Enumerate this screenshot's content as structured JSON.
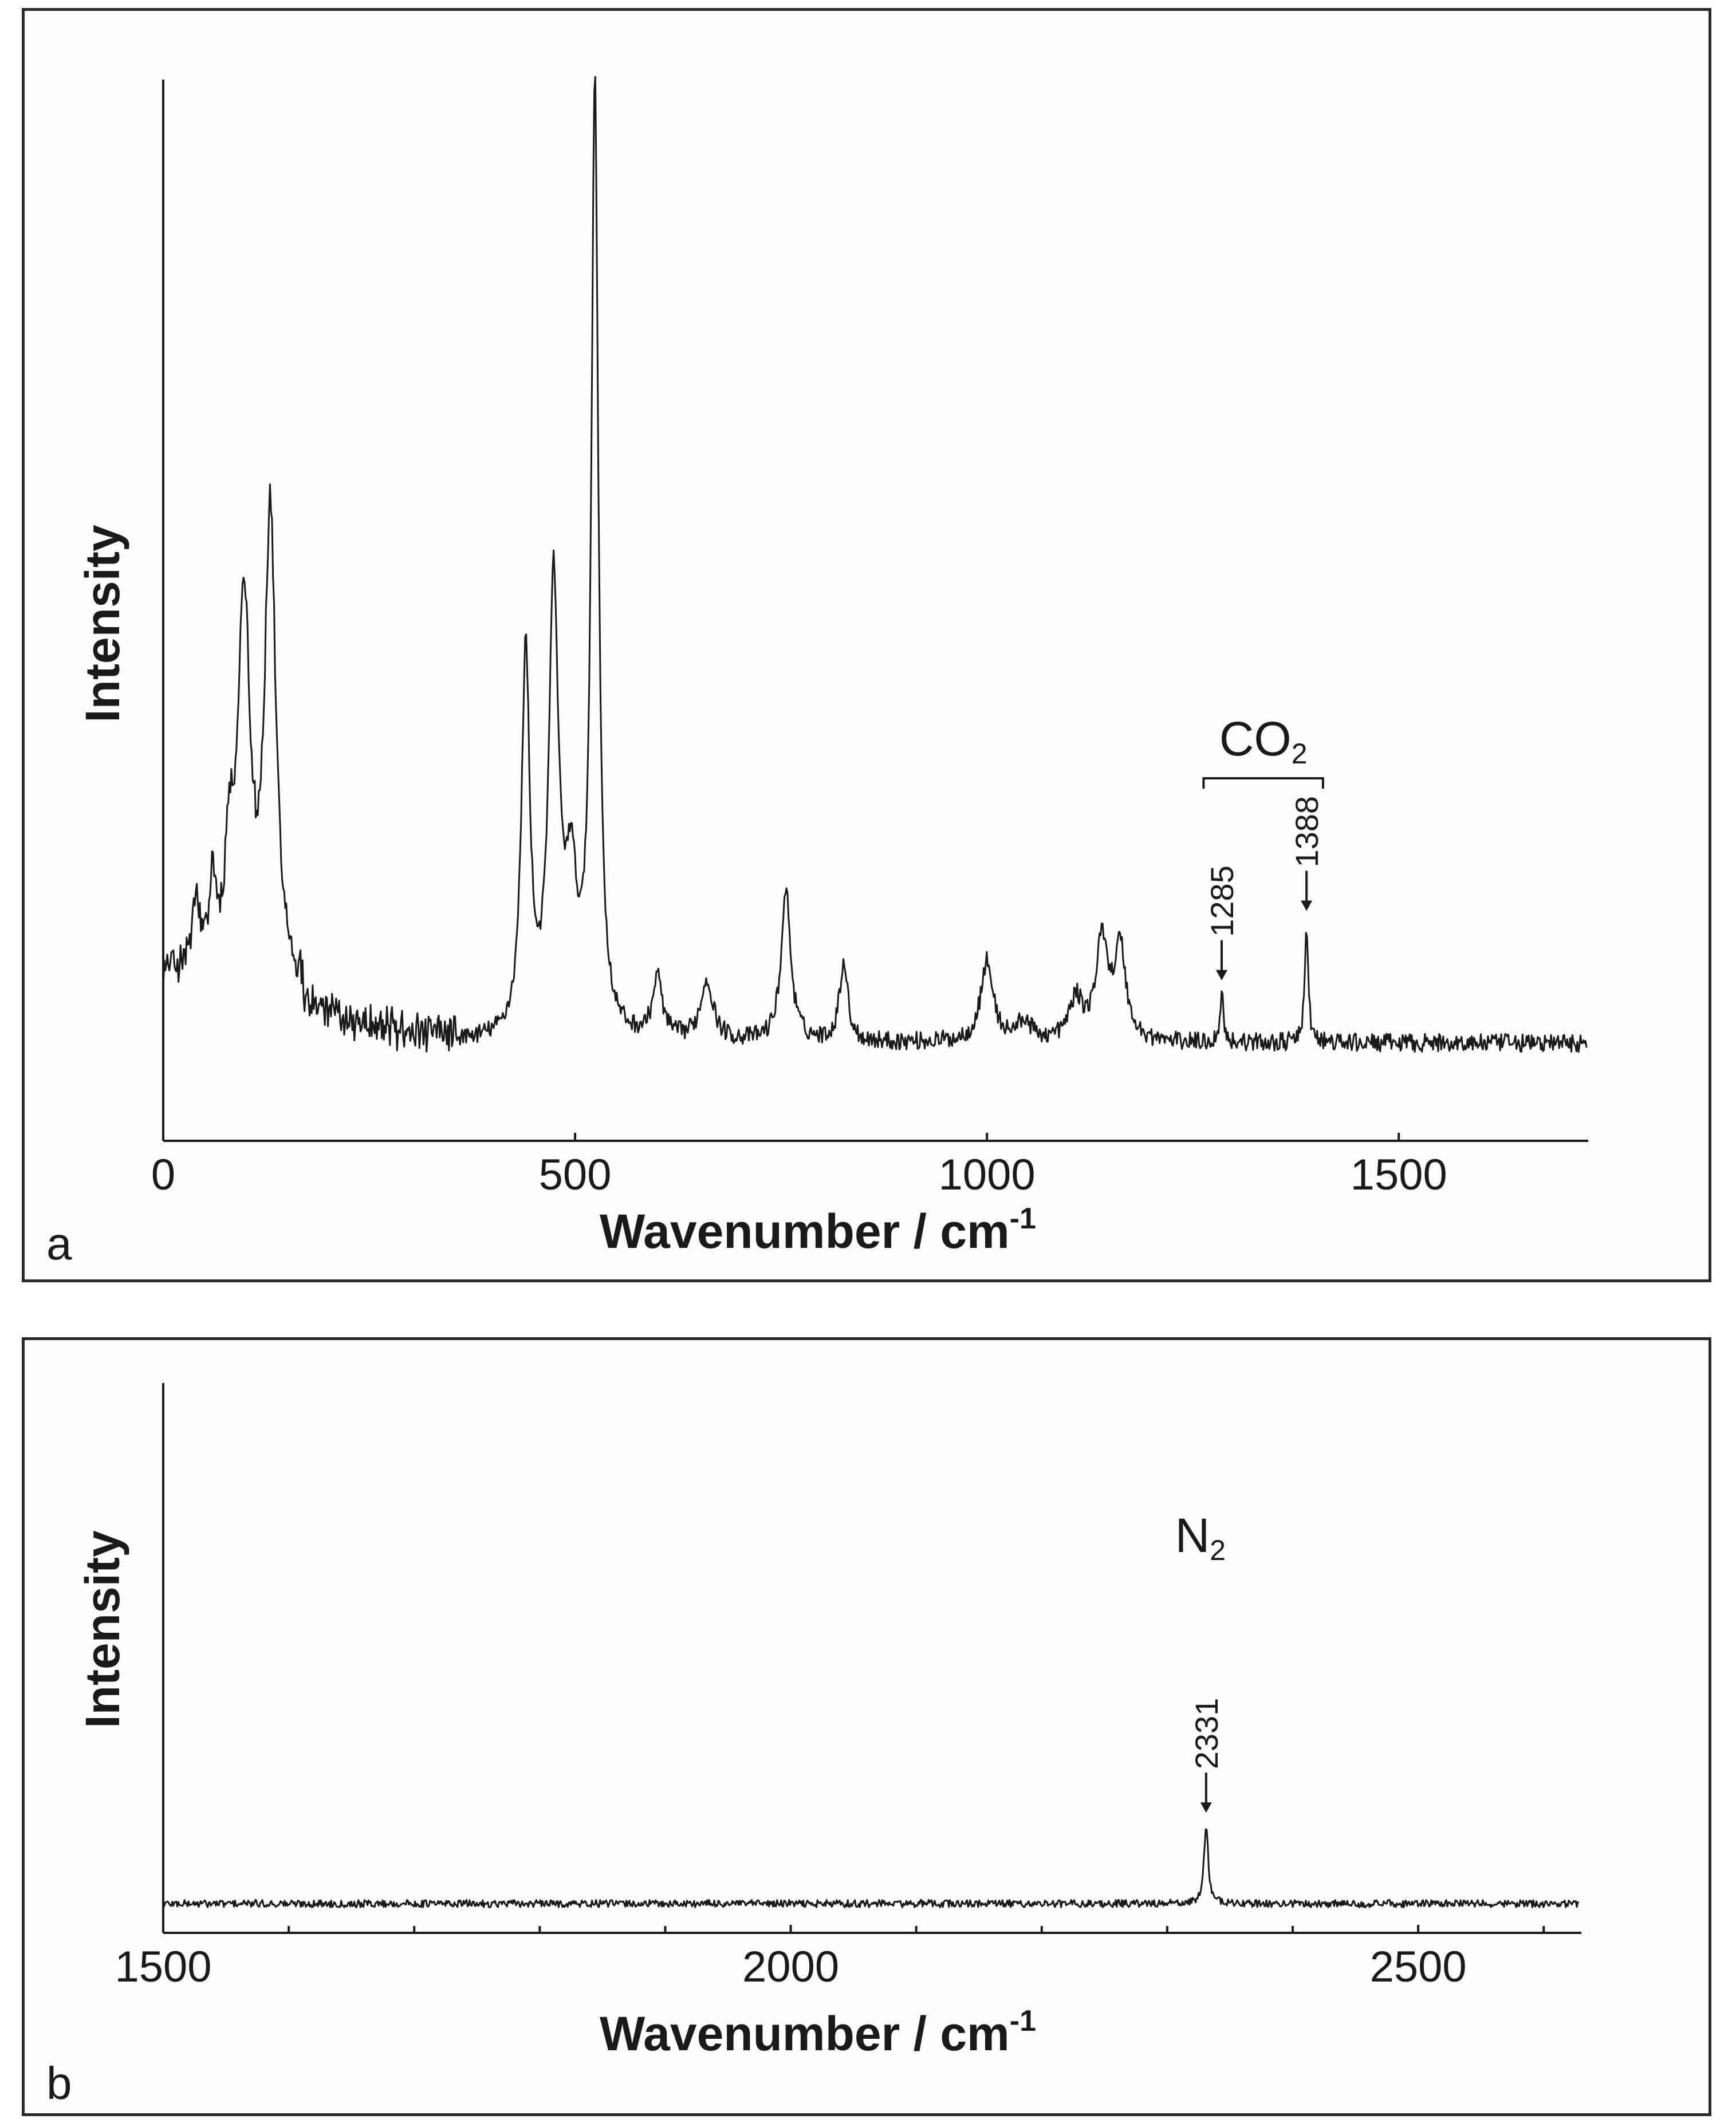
{
  "chart_data": [
    {
      "type": "line",
      "panel": "a",
      "xlabel": "Wavenumber / cm",
      "xlabel_sup": "-1",
      "ylabel": "Intensity",
      "xlim": [
        0,
        1730
      ],
      "ylim": [
        0,
        100
      ],
      "xticks": [
        0,
        500,
        1000,
        1500
      ],
      "xtick_labels": [
        "0",
        "500",
        "1000",
        "1500"
      ],
      "baseline": 5,
      "noise": 0.9,
      "peaks": [
        {
          "x": 98,
          "h": 38,
          "w": 9
        },
        {
          "x": 130,
          "h": 46,
          "w": 8
        },
        {
          "x": 80,
          "h": 10,
          "w": 6
        },
        {
          "x": 40,
          "h": 7,
          "w": 5
        },
        {
          "x": 60,
          "h": 9,
          "w": 4
        },
        {
          "x": 440,
          "h": 38,
          "w": 6
        },
        {
          "x": 474,
          "h": 44,
          "w": 7
        },
        {
          "x": 495,
          "h": 14,
          "w": 9
        },
        {
          "x": 524,
          "h": 95,
          "w": 5
        },
        {
          "x": 600,
          "h": 6,
          "w": 7
        },
        {
          "x": 660,
          "h": 6,
          "w": 9
        },
        {
          "x": 756,
          "h": 15,
          "w": 7
        },
        {
          "x": 826,
          "h": 8,
          "w": 6
        },
        {
          "x": 1000,
          "h": 8,
          "w": 9
        },
        {
          "x": 1045,
          "h": 2,
          "w": 10
        },
        {
          "x": 1108,
          "h": 4,
          "w": 10
        },
        {
          "x": 1140,
          "h": 10,
          "w": 9
        },
        {
          "x": 1162,
          "h": 9,
          "w": 8
        },
        {
          "x": 1285,
          "h": 5,
          "w": 2.5
        },
        {
          "x": 1388,
          "h": 12,
          "w": 2.5
        }
      ],
      "annotations": {
        "group_label": "CO",
        "group_label_sub": "2",
        "group_range": [
          1263,
          1408
        ],
        "peaks": [
          {
            "x": 1285,
            "label": "1285"
          },
          {
            "x": 1388,
            "label": "1388"
          }
        ]
      },
      "panel_label": "a"
    },
    {
      "type": "line",
      "panel": "b",
      "xlabel": "Wavenumber / cm",
      "xlabel_sup": "-1",
      "ylabel": "Intensity",
      "xlim": [
        1500,
        2630
      ],
      "ylim": [
        0,
        100
      ],
      "xticks": [
        1500,
        2000,
        2500
      ],
      "xtick_labels": [
        "1500",
        "2000",
        "2500"
      ],
      "minor_ticks": [
        1600,
        1700,
        1800,
        1900,
        2100,
        2200,
        2300,
        2400,
        2600
      ],
      "baseline": 12,
      "noise": 0.7,
      "peaks": [
        {
          "x": 2331,
          "h": 15,
          "w": 2
        }
      ],
      "annotations": {
        "group_label": "N",
        "group_label_sub": "2",
        "peaks": [
          {
            "x": 2331,
            "label": "2331"
          }
        ]
      },
      "panel_label": "b"
    }
  ]
}
